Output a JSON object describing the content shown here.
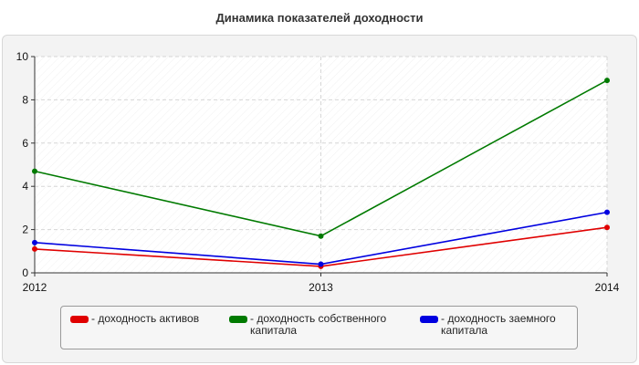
{
  "page_title": "Динамика показателей доходности",
  "chart_data": {
    "type": "line",
    "title": "Динамика показателей доходности",
    "x": [
      "2012",
      "2013",
      "2014"
    ],
    "ylim": [
      0,
      10
    ],
    "yticks": [
      "0",
      "2",
      "4",
      "6",
      "8",
      "10"
    ],
    "grid": true,
    "legend_position": "bottom",
    "series": [
      {
        "name": "доходность активов",
        "label": "- доходность активов",
        "color": "#e00000",
        "values": [
          1.1,
          0.3,
          2.1
        ]
      },
      {
        "name": "доходность собственного капитала",
        "label": "- доходность собственного\nкапитала",
        "color": "#007a00",
        "values": [
          4.7,
          1.7,
          8.9
        ]
      },
      {
        "name": "доходность заемного капитала",
        "label": "- доходность заемного\nкапитала",
        "color": "#0000e0",
        "values": [
          1.4,
          0.4,
          2.8
        ]
      }
    ]
  }
}
